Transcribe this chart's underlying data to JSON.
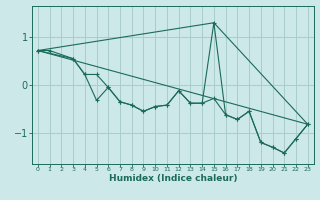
{
  "xlabel": "Humidex (Indice chaleur)",
  "bg_color": "#cce8e8",
  "line_color": "#1a6b5a",
  "grid_color": "#aacccc",
  "xlim": [
    -0.5,
    23.5
  ],
  "ylim": [
    -1.65,
    1.65
  ],
  "yticks": [
    -1,
    0,
    1
  ],
  "xticks": [
    0,
    1,
    2,
    3,
    4,
    5,
    6,
    7,
    8,
    9,
    10,
    11,
    12,
    13,
    14,
    15,
    16,
    17,
    18,
    19,
    20,
    21,
    22,
    23
  ],
  "line1_x": [
    0,
    1,
    3,
    4,
    5,
    6,
    7,
    8,
    9,
    10,
    11,
    12,
    13,
    14,
    15,
    16,
    17,
    18,
    19,
    20,
    21,
    22,
    23
  ],
  "line1_y": [
    0.72,
    0.72,
    0.55,
    0.22,
    -0.32,
    -0.05,
    -0.35,
    -0.42,
    -0.55,
    -0.45,
    -0.42,
    -0.12,
    -0.38,
    -0.38,
    1.3,
    -0.62,
    -0.72,
    -0.55,
    -1.2,
    -1.3,
    -1.42,
    -1.12,
    -0.82
  ],
  "line2_x": [
    0,
    3,
    4,
    5,
    6,
    7,
    8,
    9,
    10,
    11,
    12,
    13,
    14,
    15,
    16,
    17,
    18,
    19,
    20,
    21,
    22,
    23
  ],
  "line2_y": [
    0.72,
    0.55,
    0.22,
    0.22,
    -0.05,
    -0.35,
    -0.42,
    -0.55,
    -0.45,
    -0.42,
    -0.12,
    -0.38,
    -0.38,
    -0.28,
    -0.62,
    -0.72,
    -0.55,
    -1.2,
    -1.3,
    -1.42,
    -1.12,
    -0.82
  ],
  "line3_x": [
    0,
    23
  ],
  "line3_y": [
    0.72,
    -0.82
  ],
  "line4_x": [
    0,
    15,
    23
  ],
  "line4_y": [
    0.72,
    1.3,
    -0.82
  ]
}
